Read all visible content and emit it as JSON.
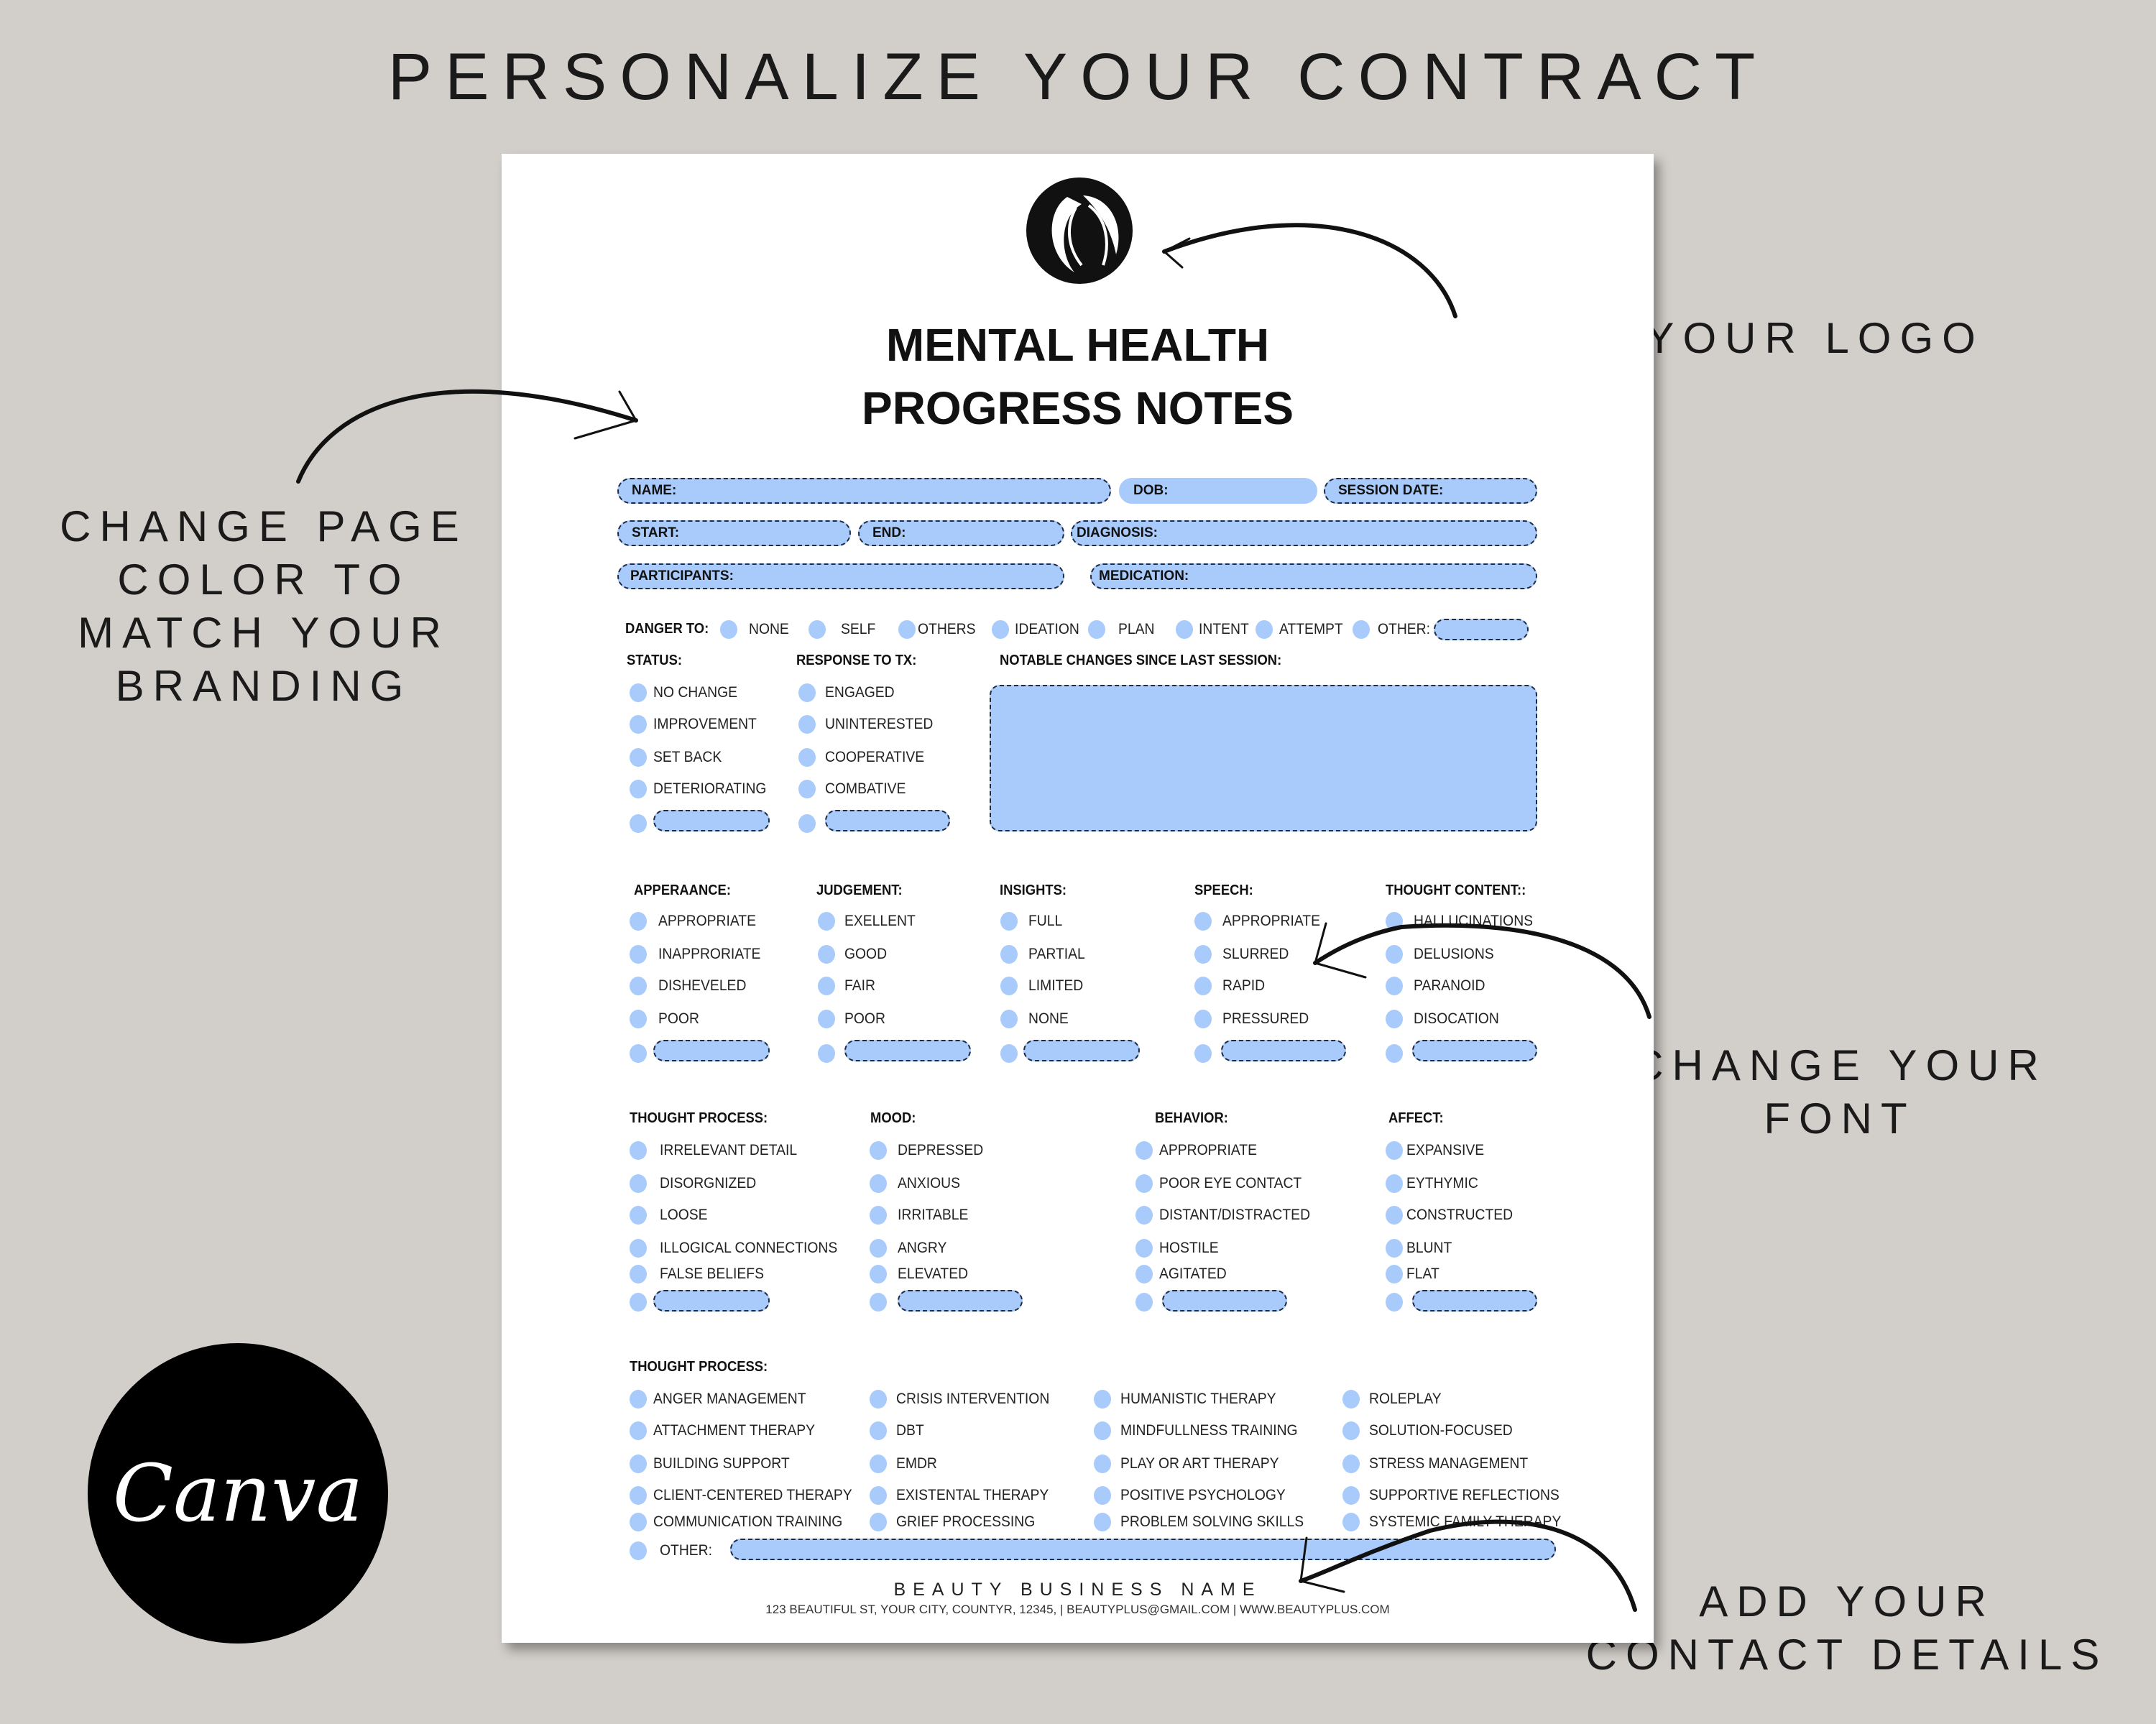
{
  "banner": "PERSONALIZE YOUR CONTRACT",
  "annotations": {
    "page_color": [
      "CHANGE PAGE",
      "COLOR TO",
      "MATCH YOUR",
      "BRANDING"
    ],
    "logo": "ADD YOUR LOGO",
    "font": [
      "CHANGE YOUR",
      "FONT"
    ],
    "contact": [
      "ADD YOUR",
      "CONTACT DETAILS"
    ]
  },
  "canva_logo": "Canva",
  "colors": {
    "background": "#d2cec9",
    "field_blue": "#a8cbfb",
    "paper": "#ffffff"
  },
  "document": {
    "logo_icon": "woman-profile-logo",
    "title": [
      "MENTAL HEALTH",
      "PROGRESS NOTES"
    ],
    "fields": {
      "name": "NAME:",
      "dob": "DOB:",
      "session_date": "SESSION  DATE:",
      "start": "START:",
      "end": "END:",
      "diagnosis": "DIAGNOSIS:",
      "participants": "PARTICIPANTS:",
      "medication": "MEDICATION:"
    },
    "danger": {
      "label": "DANGER TO:",
      "options": [
        "NONE",
        "SELF",
        "OTHERS",
        "IDEATION",
        "PLAN",
        "INTENT",
        "ATTEMPT",
        "OTHER:"
      ]
    },
    "status": {
      "header": "STATUS:",
      "items": [
        "NO CHANGE",
        "IMPROVEMENT",
        "SET BACK",
        "DETERIORATING"
      ]
    },
    "response": {
      "header": "RESPONSE TO TX:",
      "items": [
        "ENGAGED",
        "UNINTERESTED",
        "COOPERATIVE",
        "COMBATIVE"
      ]
    },
    "notable_changes": {
      "header": "NOTABLE CHANGES SINCE LAST SESSION:"
    },
    "section2": [
      {
        "header": "APPERAANCE:",
        "items": [
          "APPROPRIATE",
          "INAPPRORIATE",
          "DISHEVELED",
          "POOR"
        ]
      },
      {
        "header": "JUDGEMENT:",
        "items": [
          "EXELLENT",
          "GOOD",
          "FAIR",
          "POOR"
        ]
      },
      {
        "header": "INSIGHTS:",
        "items": [
          "FULL",
          "PARTIAL",
          "LIMITED",
          "NONE"
        ]
      },
      {
        "header": "SPEECH:",
        "items": [
          "APPROPRIATE",
          "SLURRED",
          "RAPID",
          "PRESSURED"
        ]
      },
      {
        "header": "THOUGHT CONTENT::",
        "items": [
          "HALLUCINATIONS",
          "DELUSIONS",
          "PARANOID",
          "DISOCATION"
        ]
      }
    ],
    "section3": [
      {
        "header": "THOUGHT PROCESS:",
        "items": [
          "IRRELEVANT DETAIL",
          "DISORGNIZED",
          "LOOSE",
          "ILLOGICAL CONNECTIONS",
          "FALSE BELIEFS"
        ]
      },
      {
        "header": "MOOD:",
        "items": [
          "DEPRESSED",
          "ANXIOUS",
          "IRRITABLE",
          "ANGRY",
          "ELEVATED"
        ]
      },
      {
        "header": "BEHAVIOR:",
        "items": [
          "APPROPRIATE",
          "POOR EYE CONTACT",
          "DISTANT/DISTRACTED",
          "HOSTILE",
          "AGITATED"
        ]
      },
      {
        "header": "AFFECT:",
        "items": [
          "EXPANSIVE",
          "EYTHYMIC",
          "CONSTRUCTED",
          "BLUNT",
          "FLAT"
        ]
      }
    ],
    "section4": {
      "header": "THOUGHT PROCESS:",
      "columns": [
        [
          "ANGER MANAGEMENT",
          "ATTACHMENT THERAPY",
          "BUILDING SUPPORT",
          "CLIENT-CENTERED THERAPY",
          "COMMUNICATION TRAINING"
        ],
        [
          "CRISIS INTERVENTION",
          "DBT",
          "EMDR",
          "EXISTENTAL THERAPY",
          "GRIEF PROCESSING"
        ],
        [
          "HUMANISTIC THERAPY",
          "MINDFULLNESS TRAINING",
          "PLAY OR ART THERAPY",
          "POSITIVE PSYCHOLOGY",
          "PROBLEM SOLVING SKILLS"
        ],
        [
          "ROLEPLAY",
          "SOLUTION-FOCUSED",
          "STRESS MANAGEMENT",
          "SUPPORTIVE REFLECTIONS",
          "SYSTEMIC FAMILY THERAPY"
        ]
      ],
      "other": "OTHER:"
    },
    "footer": {
      "business_name": "BEAUTY BUSINESS NAME",
      "contact": "123 BEAUTIFUL ST, YOUR CITY, COUNTYR, 12345, | BEAUTYPLUS@GMAIL.COM | WWW.BEAUTYPLUS.COM"
    }
  }
}
